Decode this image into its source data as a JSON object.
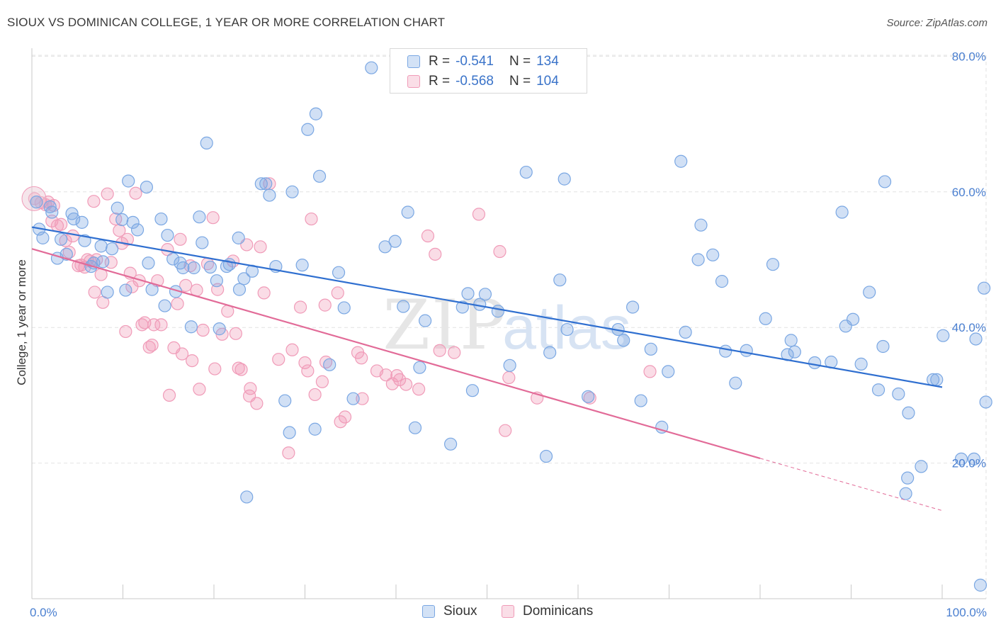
{
  "header": {
    "title": "SIOUX VS DOMINICAN COLLEGE, 1 YEAR OR MORE CORRELATION CHART",
    "source": "Source: ZipAtlas.com"
  },
  "legend": {
    "rows": [
      {
        "r_label": "R =",
        "r_value": "-0.541",
        "n_label": "N =",
        "n_value": "134",
        "color": "#7aa7e3"
      },
      {
        "r_label": "R =",
        "r_value": "-0.568",
        "n_label": "N =",
        "n_value": "104",
        "color": "#f09bb8"
      }
    ]
  },
  "bottom_legend": [
    {
      "label": "Sioux",
      "color": "#7aa7e3"
    },
    {
      "label": "Dominicans",
      "color": "#f09bb8"
    }
  ],
  "chart_data": {
    "type": "scatter",
    "title": "SIOUX VS DOMINICAN COLLEGE, 1 YEAR OR MORE CORRELATION CHART",
    "xlabel": "",
    "ylabel": "College, 1 year or more",
    "xlim": [
      0,
      100
    ],
    "ylim": [
      0,
      85
    ],
    "x_tick_labels": [
      "0.0%",
      "100.0%"
    ],
    "y_ticks": [
      20,
      40,
      60,
      80
    ],
    "y_tick_labels": [
      "20.0%",
      "40.0%",
      "60.0%",
      "80.0%"
    ],
    "grid": true,
    "legend_position": "top-center",
    "watermark": "ZIPatlas",
    "series": [
      {
        "name": "Sioux",
        "color": "#7aa7e3",
        "line_color": "#2f6fd0",
        "trend": {
          "x": [
            0,
            100
          ],
          "y": [
            54.8,
            31.2
          ]
        },
        "points": [
          [
            0.5,
            58.5
          ],
          [
            0.8,
            54.5
          ],
          [
            1.2,
            53.2
          ],
          [
            2.0,
            57.8
          ],
          [
            2.2,
            57.0
          ],
          [
            2.8,
            50.2
          ],
          [
            3.2,
            53.0
          ],
          [
            3.8,
            50.8
          ],
          [
            4.4,
            56.8
          ],
          [
            4.6,
            56.0
          ],
          [
            5.5,
            55.5
          ],
          [
            5.8,
            52.8
          ],
          [
            6.5,
            49.0
          ],
          [
            6.8,
            49.5
          ],
          [
            7.6,
            52.0
          ],
          [
            7.8,
            49.7
          ],
          [
            8.3,
            45.2
          ],
          [
            8.8,
            51.6
          ],
          [
            9.4,
            57.6
          ],
          [
            9.9,
            55.9
          ],
          [
            10.3,
            45.5
          ],
          [
            10.6,
            61.6
          ],
          [
            11.1,
            55.5
          ],
          [
            11.6,
            54.4
          ],
          [
            12.6,
            60.7
          ],
          [
            12.8,
            49.5
          ],
          [
            13.2,
            45.6
          ],
          [
            14.2,
            56.0
          ],
          [
            14.6,
            43.2
          ],
          [
            14.9,
            53.6
          ],
          [
            15.5,
            50.1
          ],
          [
            15.8,
            45.3
          ],
          [
            16.3,
            49.5
          ],
          [
            16.6,
            48.8
          ],
          [
            17.5,
            40.1
          ],
          [
            17.8,
            48.8
          ],
          [
            18.4,
            56.3
          ],
          [
            18.7,
            52.5
          ],
          [
            19.2,
            67.2
          ],
          [
            19.6,
            48.9
          ],
          [
            20.3,
            46.9
          ],
          [
            20.6,
            39.8
          ],
          [
            21.4,
            49.0
          ],
          [
            21.7,
            49.3
          ],
          [
            22.7,
            53.2
          ],
          [
            22.8,
            45.6
          ],
          [
            23.3,
            47.2
          ],
          [
            23.6,
            15.0
          ],
          [
            24.2,
            48.3
          ],
          [
            25.2,
            61.2
          ],
          [
            25.7,
            61.2
          ],
          [
            26.1,
            59.5
          ],
          [
            26.8,
            49.0
          ],
          [
            27.8,
            29.2
          ],
          [
            28.3,
            24.5
          ],
          [
            28.6,
            60.0
          ],
          [
            29.7,
            49.2
          ],
          [
            30.3,
            69.2
          ],
          [
            31.2,
            71.5
          ],
          [
            31.1,
            25.0
          ],
          [
            31.6,
            62.3
          ],
          [
            32.7,
            34.5
          ],
          [
            33.7,
            48.1
          ],
          [
            34.3,
            42.9
          ],
          [
            35.3,
            29.5
          ],
          [
            37.3,
            78.3
          ],
          [
            38.8,
            51.9
          ],
          [
            39.9,
            52.7
          ],
          [
            40.8,
            43.1
          ],
          [
            41.3,
            57.0
          ],
          [
            42.1,
            25.2
          ],
          [
            42.6,
            34.1
          ],
          [
            43.2,
            41.0
          ],
          [
            46.0,
            22.8
          ],
          [
            47.3,
            43.0
          ],
          [
            47.9,
            45.0
          ],
          [
            48.4,
            30.7
          ],
          [
            49.2,
            43.4
          ],
          [
            49.8,
            44.9
          ],
          [
            51.2,
            42.4
          ],
          [
            52.5,
            34.4
          ],
          [
            54.3,
            62.9
          ],
          [
            56.5,
            21.0
          ],
          [
            56.9,
            36.3
          ],
          [
            58.0,
            47.0
          ],
          [
            58.5,
            61.9
          ],
          [
            58.8,
            39.7
          ],
          [
            61.1,
            29.8
          ],
          [
            64.4,
            39.7
          ],
          [
            65.0,
            38.1
          ],
          [
            66.0,
            43.0
          ],
          [
            66.9,
            29.2
          ],
          [
            68.0,
            36.8
          ],
          [
            69.2,
            25.3
          ],
          [
            69.9,
            33.5
          ],
          [
            71.3,
            64.5
          ],
          [
            71.8,
            39.3
          ],
          [
            73.2,
            50.0
          ],
          [
            73.5,
            55.1
          ],
          [
            74.8,
            50.7
          ],
          [
            75.8,
            46.8
          ],
          [
            76.2,
            36.5
          ],
          [
            77.3,
            31.8
          ],
          [
            78.5,
            36.6
          ],
          [
            80.6,
            41.3
          ],
          [
            81.4,
            49.3
          ],
          [
            83.0,
            36.0
          ],
          [
            83.4,
            38.1
          ],
          [
            83.8,
            36.4
          ],
          [
            86.0,
            34.8
          ],
          [
            87.8,
            34.9
          ],
          [
            89.0,
            57.0
          ],
          [
            89.4,
            40.2
          ],
          [
            90.2,
            41.2
          ],
          [
            91.1,
            34.6
          ],
          [
            92.0,
            45.2
          ],
          [
            93.0,
            30.8
          ],
          [
            93.5,
            37.2
          ],
          [
            93.7,
            61.5
          ],
          [
            95.2,
            30.2
          ],
          [
            96.3,
            27.4
          ],
          [
            96.0,
            15.5
          ],
          [
            96.2,
            17.8
          ],
          [
            97.7,
            19.5
          ],
          [
            99.0,
            32.3
          ],
          [
            99.4,
            32.3
          ],
          [
            100.1,
            38.8
          ],
          [
            102.1,
            20.6
          ],
          [
            103.5,
            20.6
          ],
          [
            103.7,
            38.3
          ],
          [
            104.6,
            45.8
          ],
          [
            104.8,
            29.0
          ],
          [
            104.2,
            2.0
          ]
        ]
      },
      {
        "name": "Dominicans",
        "color": "#f09bb8",
        "line_color": "#e26b98",
        "trend": {
          "x": [
            0,
            80
          ],
          "y": [
            51.6,
            20.7
          ]
        },
        "trend_dashed": {
          "x": [
            80,
            100
          ],
          "y": [
            20.7,
            13.0
          ]
        },
        "points": [
          [
            0.3,
            59.0
          ],
          [
            1.0,
            58.4
          ],
          [
            1.5,
            58.1
          ],
          [
            1.8,
            58.5
          ],
          [
            2.2,
            55.7
          ],
          [
            2.4,
            58.0
          ],
          [
            2.8,
            55.0
          ],
          [
            3.2,
            55.2
          ],
          [
            3.7,
            52.8
          ],
          [
            4.1,
            51.1
          ],
          [
            4.5,
            53.5
          ],
          [
            5.1,
            49.1
          ],
          [
            5.4,
            49.2
          ],
          [
            5.8,
            48.9
          ],
          [
            6.1,
            50.0
          ],
          [
            6.4,
            49.8
          ],
          [
            6.9,
            45.2
          ],
          [
            6.8,
            58.6
          ],
          [
            7.1,
            50.0
          ],
          [
            7.6,
            47.8
          ],
          [
            7.8,
            43.7
          ],
          [
            8.3,
            59.7
          ],
          [
            8.7,
            49.6
          ],
          [
            9.2,
            56.0
          ],
          [
            9.6,
            54.3
          ],
          [
            9.9,
            52.4
          ],
          [
            10.3,
            39.4
          ],
          [
            10.5,
            53.0
          ],
          [
            10.8,
            48.0
          ],
          [
            11.0,
            46.0
          ],
          [
            11.4,
            59.8
          ],
          [
            11.8,
            46.9
          ],
          [
            12.1,
            40.4
          ],
          [
            12.4,
            40.7
          ],
          [
            12.9,
            37.1
          ],
          [
            13.2,
            37.4
          ],
          [
            13.4,
            40.4
          ],
          [
            13.8,
            46.9
          ],
          [
            14.2,
            40.4
          ],
          [
            14.9,
            51.5
          ],
          [
            15.1,
            30.0
          ],
          [
            15.6,
            37.0
          ],
          [
            16.0,
            43.5
          ],
          [
            16.3,
            53.0
          ],
          [
            16.5,
            36.1
          ],
          [
            16.9,
            46.2
          ],
          [
            17.4,
            49.1
          ],
          [
            17.6,
            35.1
          ],
          [
            18.1,
            45.5
          ],
          [
            18.4,
            30.9
          ],
          [
            18.8,
            39.6
          ],
          [
            19.3,
            49.4
          ],
          [
            19.9,
            56.2
          ],
          [
            20.1,
            33.9
          ],
          [
            20.4,
            45.6
          ],
          [
            20.9,
            39.0
          ],
          [
            21.5,
            42.4
          ],
          [
            22.1,
            49.8
          ],
          [
            22.4,
            39.1
          ],
          [
            22.7,
            34.0
          ],
          [
            23.0,
            33.8
          ],
          [
            23.6,
            52.2
          ],
          [
            23.9,
            29.9
          ],
          [
            24.0,
            31.0
          ],
          [
            24.7,
            28.8
          ],
          [
            25.1,
            51.9
          ],
          [
            25.5,
            45.1
          ],
          [
            26.1,
            61.2
          ],
          [
            27.1,
            35.3
          ],
          [
            28.2,
            21.5
          ],
          [
            28.6,
            36.7
          ],
          [
            29.5,
            43.0
          ],
          [
            30.0,
            34.8
          ],
          [
            30.3,
            33.6
          ],
          [
            30.7,
            56.0
          ],
          [
            31.1,
            30.1
          ],
          [
            31.9,
            32.0
          ],
          [
            32.2,
            43.3
          ],
          [
            32.3,
            34.9
          ],
          [
            33.6,
            45.1
          ],
          [
            33.9,
            26.1
          ],
          [
            34.4,
            26.8
          ],
          [
            35.8,
            36.3
          ],
          [
            36.2,
            35.5
          ],
          [
            36.3,
            29.5
          ],
          [
            37.9,
            33.6
          ],
          [
            38.9,
            33.0
          ],
          [
            39.6,
            31.7
          ],
          [
            40.1,
            32.9
          ],
          [
            40.4,
            32.3
          ],
          [
            41.1,
            31.6
          ],
          [
            42.5,
            30.9
          ],
          [
            43.5,
            53.5
          ],
          [
            44.3,
            50.8
          ],
          [
            44.8,
            36.6
          ],
          [
            46.4,
            36.3
          ],
          [
            49.1,
            56.7
          ],
          [
            51.4,
            51.2
          ],
          [
            52.0,
            24.8
          ],
          [
            52.4,
            32.6
          ],
          [
            55.5,
            29.6
          ],
          [
            61.3,
            29.6
          ],
          [
            67.9,
            33.5
          ]
        ]
      }
    ]
  }
}
